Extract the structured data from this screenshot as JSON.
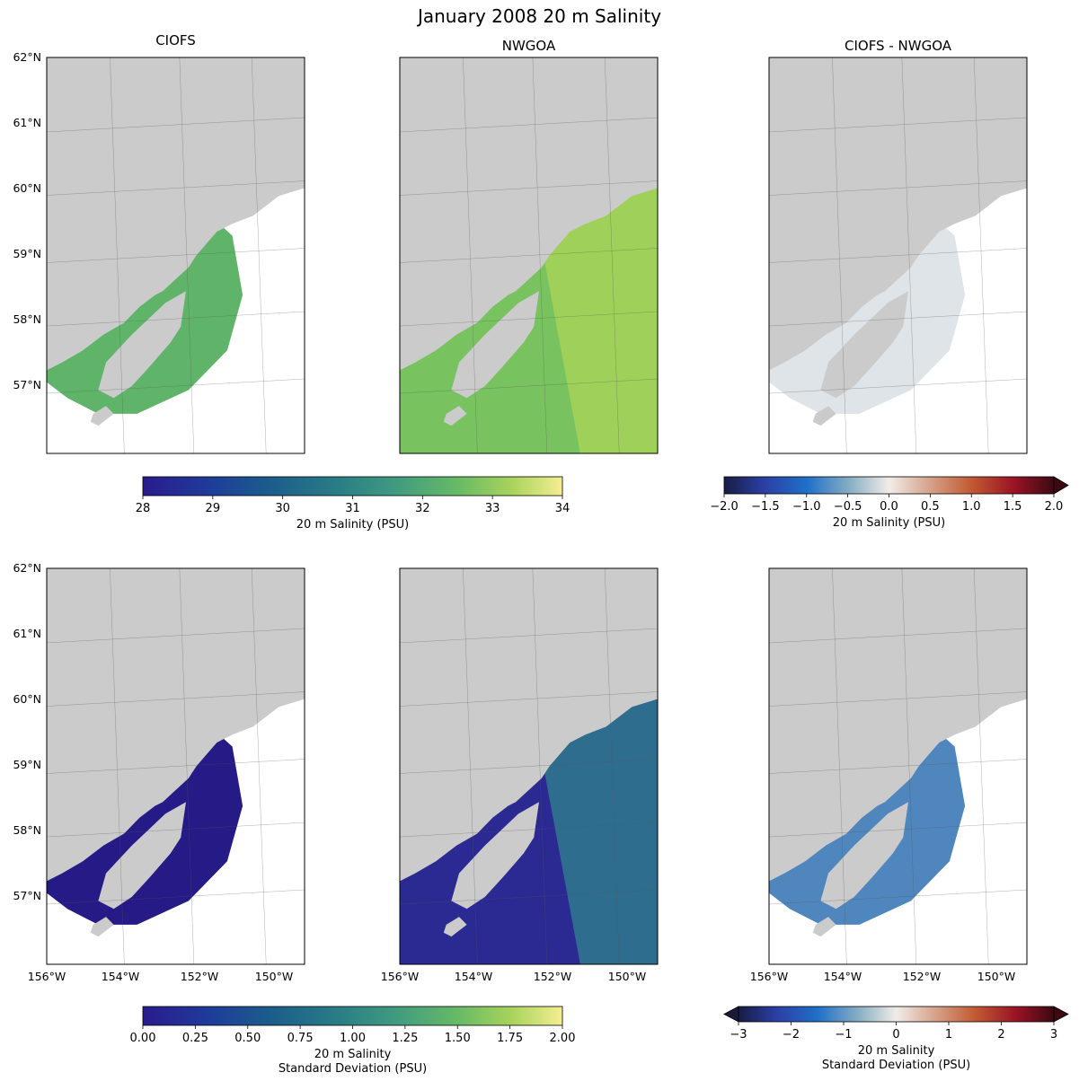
{
  "figure": {
    "title": "January 2008 20 m Salinity"
  },
  "chart_data": [
    {
      "type": "heatmap",
      "panel": "top-left",
      "title": "CIOFS",
      "variable": "20 m Salinity (PSU)",
      "lat_ticks": [
        "62°N",
        "61°N",
        "60°N",
        "59°N",
        "58°N",
        "57°N"
      ],
      "lon_ticks": [],
      "colormap": "haline",
      "clim": [
        28,
        34
      ]
    },
    {
      "type": "heatmap",
      "panel": "top-center",
      "title": "NWGOA",
      "variable": "20 m Salinity (PSU)",
      "colormap": "haline",
      "clim": [
        28,
        34
      ]
    },
    {
      "type": "heatmap",
      "panel": "top-right",
      "title": "CIOFS - NWGOA",
      "variable": "20 m Salinity (PSU)",
      "colormap": "balance",
      "clim": [
        -2.0,
        2.0
      ]
    },
    {
      "type": "heatmap",
      "panel": "bottom-left",
      "title": "",
      "variable": "20 m Salinity Standard Deviation (PSU)",
      "lat_ticks": [
        "62°N",
        "61°N",
        "60°N",
        "59°N",
        "58°N",
        "57°N"
      ],
      "lon_ticks": [
        "156°W",
        "154°W",
        "152°W",
        "150°W"
      ],
      "colormap": "haline",
      "clim": [
        0.0,
        2.0
      ]
    },
    {
      "type": "heatmap",
      "panel": "bottom-center",
      "title": "",
      "variable": "20 m Salinity Standard Deviation (PSU)",
      "lon_ticks": [
        "156°W",
        "154°W",
        "152°W",
        "150°W"
      ],
      "colormap": "haline",
      "clim": [
        0.0,
        2.0
      ]
    },
    {
      "type": "heatmap",
      "panel": "bottom-right",
      "title": "",
      "variable": "20 m Salinity Standard Deviation (PSU)",
      "lon_ticks": [
        "156°W",
        "154°W",
        "152°W",
        "150°W"
      ],
      "colormap": "balance",
      "clim": [
        -3,
        3
      ]
    }
  ],
  "colorbars": {
    "salinity": {
      "label": "20 m Salinity (PSU)",
      "ticks": [
        "28",
        "29",
        "30",
        "31",
        "32",
        "33",
        "34"
      ]
    },
    "salinity_diff": {
      "label": "20 m Salinity (PSU)",
      "ticks": [
        "−2.0",
        "−1.5",
        "−1.0",
        "−0.5",
        "0.0",
        "0.5",
        "1.0",
        "1.5",
        "2.0"
      ],
      "extend": "max"
    },
    "std": {
      "label_line1": "20 m Salinity",
      "label_line2": "Standard Deviation (PSU)",
      "ticks": [
        "0.00",
        "0.25",
        "0.50",
        "0.75",
        "1.00",
        "1.25",
        "1.50",
        "1.75",
        "2.00"
      ]
    },
    "std_diff": {
      "label_line1": "20 m Salinity",
      "label_line2": "Standard Deviation (PSU)",
      "ticks": [
        "−3",
        "−2",
        "−1",
        "0",
        "1",
        "2",
        "3"
      ],
      "extend": "both"
    }
  },
  "colors": {
    "land": "#cbcbcb",
    "haline_low": "#2a1a8a",
    "haline_mid": "#3f9a84",
    "haline_high": "#f2ec8c",
    "balance_low": "#1a1a3a",
    "balance_mid": "#f2eeeb",
    "balance_high": "#3c0913"
  }
}
